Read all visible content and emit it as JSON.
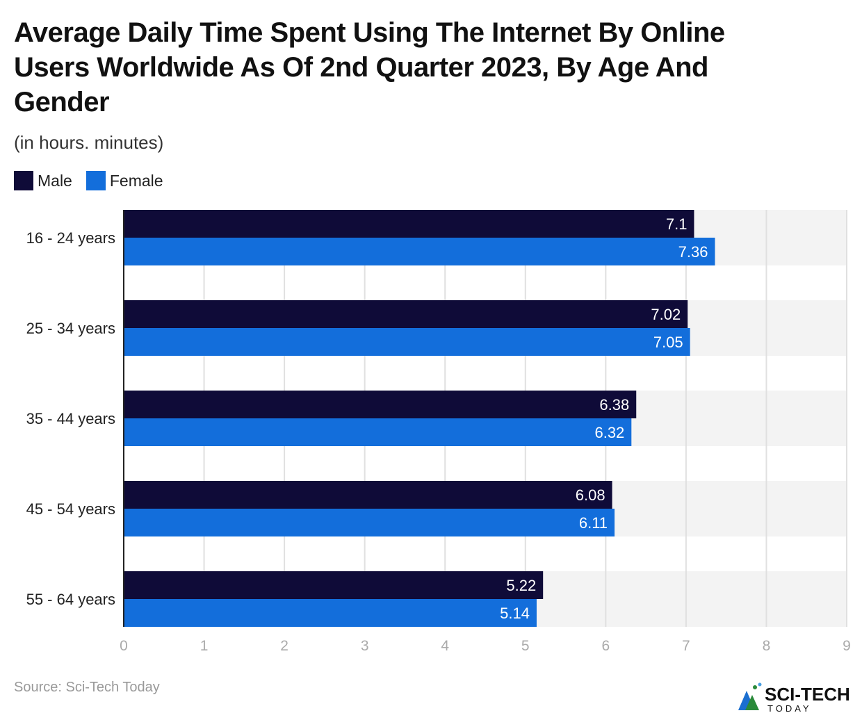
{
  "chart_data": {
    "type": "bar",
    "orientation": "horizontal",
    "title": "Average Daily Time Spent Using The Internet By Online Users Worldwide As Of 2nd Quarter 2023, By Age And Gender",
    "subtitle": "(in hours. minutes)",
    "categories": [
      "16 - 24 years",
      "25 - 34 years",
      "35 - 44 years",
      "45 - 54 years",
      "55 - 64 years"
    ],
    "series": [
      {
        "name": "Male",
        "color": "#0f0b38",
        "values": [
          7.1,
          7.02,
          6.38,
          6.08,
          5.22
        ],
        "labels": [
          "7.1",
          "7.02",
          "6.38",
          "6.08",
          "5.22"
        ]
      },
      {
        "name": "Female",
        "color": "#136edb",
        "values": [
          7.36,
          7.05,
          6.32,
          6.11,
          5.14
        ],
        "labels": [
          "7.36",
          "7.05",
          "6.32",
          "6.11",
          "5.14"
        ]
      }
    ],
    "xlim": [
      0,
      9
    ],
    "xticks": [
      "0",
      "1",
      "2",
      "3",
      "4",
      "5",
      "6",
      "7",
      "8",
      "9"
    ],
    "grid": true,
    "legend": "top-left"
  },
  "source": "Source: Sci-Tech Today",
  "logo": {
    "text": "SCI-TECH",
    "subtext": "TODAY"
  }
}
